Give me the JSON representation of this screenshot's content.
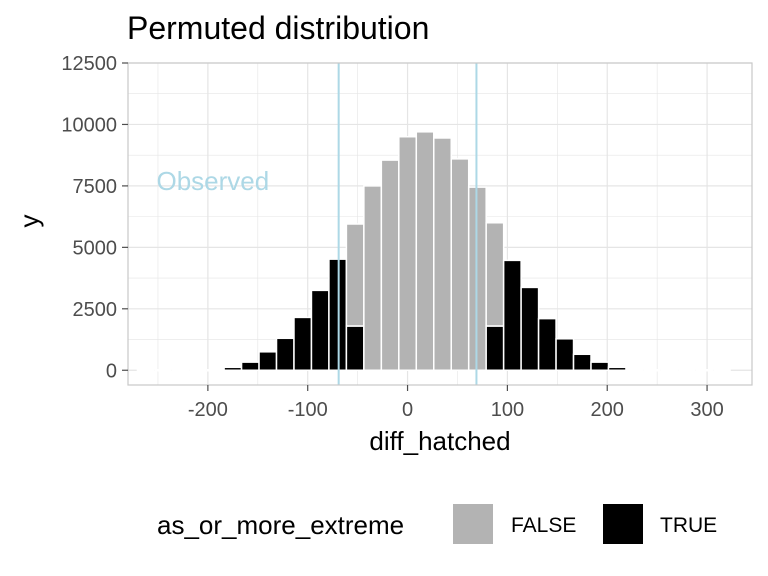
{
  "chart_data": {
    "type": "bar",
    "title": "Permuted distribution",
    "xlabel": "diff_hatched",
    "ylabel": "y",
    "xlim": [
      -280,
      345
    ],
    "ylim": [
      -600,
      12500
    ],
    "x_ticks": [
      -200,
      -100,
      0,
      100,
      200,
      300
    ],
    "y_ticks": [
      0,
      2500,
      5000,
      7500,
      10000,
      12500
    ],
    "grid": true,
    "bin_width": 17.5,
    "bars": [
      {
        "x": -262.5,
        "TRUE": 0,
        "FALSE": 0
      },
      {
        "x": -245.0,
        "TRUE": 0,
        "FALSE": 0
      },
      {
        "x": -227.5,
        "TRUE": 0,
        "FALSE": 0
      },
      {
        "x": -210.0,
        "TRUE": 0,
        "FALSE": 0
      },
      {
        "x": -192.5,
        "TRUE": 0,
        "FALSE": 0
      },
      {
        "x": -175.0,
        "TRUE": 120,
        "FALSE": 0
      },
      {
        "x": -157.5,
        "TRUE": 330,
        "FALSE": 0
      },
      {
        "x": -140.0,
        "TRUE": 750,
        "FALSE": 0
      },
      {
        "x": -122.5,
        "TRUE": 1300,
        "FALSE": 0
      },
      {
        "x": -105.0,
        "TRUE": 2150,
        "FALSE": 0
      },
      {
        "x": -87.5,
        "TRUE": 3250,
        "FALSE": 0
      },
      {
        "x": -70.0,
        "TRUE": 4520,
        "FALSE": 0
      },
      {
        "x": -52.5,
        "TRUE": 1800,
        "FALSE": 4150
      },
      {
        "x": -35.0,
        "TRUE": 0,
        "FALSE": 7500
      },
      {
        "x": -17.5,
        "TRUE": 0,
        "FALSE": 8550
      },
      {
        "x": 0.0,
        "TRUE": 0,
        "FALSE": 9500
      },
      {
        "x": 17.5,
        "TRUE": 0,
        "FALSE": 9700
      },
      {
        "x": 35.0,
        "TRUE": 0,
        "FALSE": 9450
      },
      {
        "x": 52.5,
        "TRUE": 0,
        "FALSE": 8600
      },
      {
        "x": 70.0,
        "TRUE": 0,
        "FALSE": 7450
      },
      {
        "x": 87.5,
        "TRUE": 1800,
        "FALSE": 4200
      },
      {
        "x": 105.0,
        "TRUE": 4470,
        "FALSE": 0
      },
      {
        "x": 122.5,
        "TRUE": 3370,
        "FALSE": 0
      },
      {
        "x": 140.0,
        "TRUE": 2100,
        "FALSE": 0
      },
      {
        "x": 157.5,
        "TRUE": 1280,
        "FALSE": 0
      },
      {
        "x": 175.0,
        "TRUE": 650,
        "FALSE": 0
      },
      {
        "x": 192.5,
        "TRUE": 330,
        "FALSE": 0
      },
      {
        "x": 210.0,
        "TRUE": 120,
        "FALSE": 0
      },
      {
        "x": 227.5,
        "TRUE": 0,
        "FALSE": 0
      },
      {
        "x": 245.0,
        "TRUE": 0,
        "FALSE": 0
      },
      {
        "x": 262.5,
        "TRUE": 0,
        "FALSE": 0
      },
      {
        "x": 280.0,
        "TRUE": 0,
        "FALSE": 0
      },
      {
        "x": 297.5,
        "TRUE": 0,
        "FALSE": 0
      },
      {
        "x": 315.0,
        "TRUE": 0,
        "FALSE": 0
      }
    ],
    "vlines": [
      -69,
      69
    ],
    "vline_color": "#add8e6",
    "annotation": {
      "text": "Observed",
      "x": -195,
      "y": 7700,
      "color": "#add8e6"
    },
    "colors": {
      "FALSE": "#b3b3b3",
      "TRUE": "#000000",
      "grid": "#e5e5e5",
      "panel_border": "#c8c8c8"
    },
    "legend": {
      "title": "as_or_more_extreme",
      "position": "bottom",
      "entries": [
        {
          "label": "FALSE",
          "key": "FALSE"
        },
        {
          "label": "TRUE",
          "key": "TRUE"
        }
      ]
    }
  }
}
